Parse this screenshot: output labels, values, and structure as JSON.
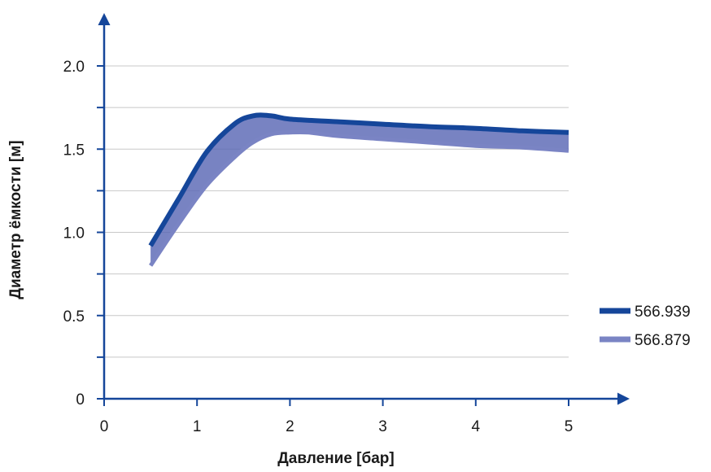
{
  "chart_data": {
    "type": "area",
    "title": "",
    "xlabel": "Давление [бар]",
    "ylabel": "Диаметр ёмкости [м]",
    "xlim": [
      0,
      5.4
    ],
    "ylim": [
      0,
      2.3
    ],
    "x_ticks": [
      0,
      1,
      2,
      3,
      4,
      5
    ],
    "x_tick_labels": [
      "0",
      "1",
      "2",
      "3",
      "4",
      "5"
    ],
    "y_ticks": [
      0,
      0.5,
      1.0,
      1.5,
      2.0
    ],
    "y_tick_labels": [
      "0",
      "0.5",
      "1.0",
      "1.5",
      "2.0"
    ],
    "y_grid_values": [
      0.25,
      0.5,
      0.75,
      1.0,
      1.25,
      1.5,
      1.75,
      2.0
    ],
    "grid": true,
    "legend_position": "right",
    "fill_between_series": true,
    "fill_color": "#5a68b4",
    "series": [
      {
        "name": "566.939",
        "color": "#15469a",
        "x": [
          0.5,
          0.8,
          1.1,
          1.4,
          1.6,
          1.8,
          2.0,
          2.5,
          3.0,
          3.5,
          4.0,
          4.5,
          5.0
        ],
        "y": [
          0.92,
          1.2,
          1.48,
          1.65,
          1.7,
          1.7,
          1.68,
          1.665,
          1.65,
          1.635,
          1.625,
          1.61,
          1.6
        ]
      },
      {
        "name": "566.879",
        "color": "#7a84c4",
        "x": [
          0.5,
          0.8,
          1.1,
          1.4,
          1.6,
          1.8,
          2.0,
          2.2,
          2.5,
          3.0,
          3.5,
          4.0,
          4.5,
          5.0
        ],
        "y": [
          0.8,
          1.05,
          1.28,
          1.45,
          1.54,
          1.59,
          1.6,
          1.6,
          1.58,
          1.56,
          1.54,
          1.52,
          1.51,
          1.49
        ]
      }
    ]
  }
}
